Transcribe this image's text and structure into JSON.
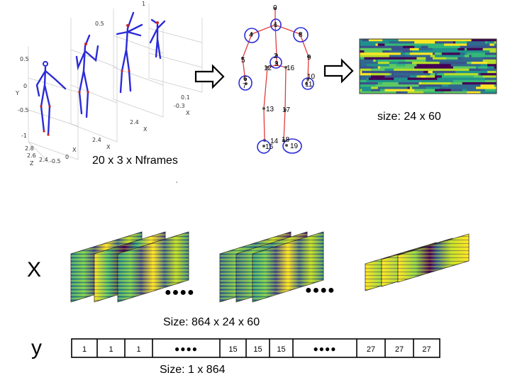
{
  "top": {
    "skeleton_caption": "20 x 3 x Nframes",
    "image_caption": "size: 24 x 60",
    "plot_ticks_y": [
      "0.5",
      "0",
      "-0.5",
      "-1"
    ],
    "plot_ticks_y_top": [
      "0.5",
      "1"
    ],
    "plot_label_y": "Y",
    "plot_label_x": "X",
    "plot_label_z": "Z",
    "plot_ticks_z": [
      "2.8",
      "2.6",
      "2.4"
    ],
    "plot_ticks_x": [
      "-0.5",
      "0"
    ],
    "plot_ticks_x_back": [
      "-0.3",
      "0.1"
    ],
    "plot_ticks_z_back": [
      "2.4"
    ],
    "joint_labels": [
      "0",
      "1",
      "2",
      "3",
      "4",
      "5",
      "6",
      "7",
      "8",
      "9",
      "10",
      "11",
      "12",
      "13",
      "14",
      "15",
      "16",
      "17",
      "18",
      "19"
    ]
  },
  "bottom": {
    "x_label": "X",
    "y_label": "y",
    "dots": "●●●●",
    "x_caption": "Size: 864 x 24 x 60",
    "y_caption": "Size: 1 x 864",
    "label_cells": [
      "1",
      "1",
      "1",
      "●●●●",
      "15",
      "15",
      "15",
      "●●●●",
      "27",
      "27",
      "27"
    ]
  },
  "colors": {
    "viridis_dark": "#440154",
    "viridis_blue": "#31688e",
    "viridis_teal": "#21918c",
    "viridis_green": "#5ec962",
    "viridis_yellow": "#fde725",
    "bone": "#e23c3c",
    "circle": "#2b2bd8"
  }
}
